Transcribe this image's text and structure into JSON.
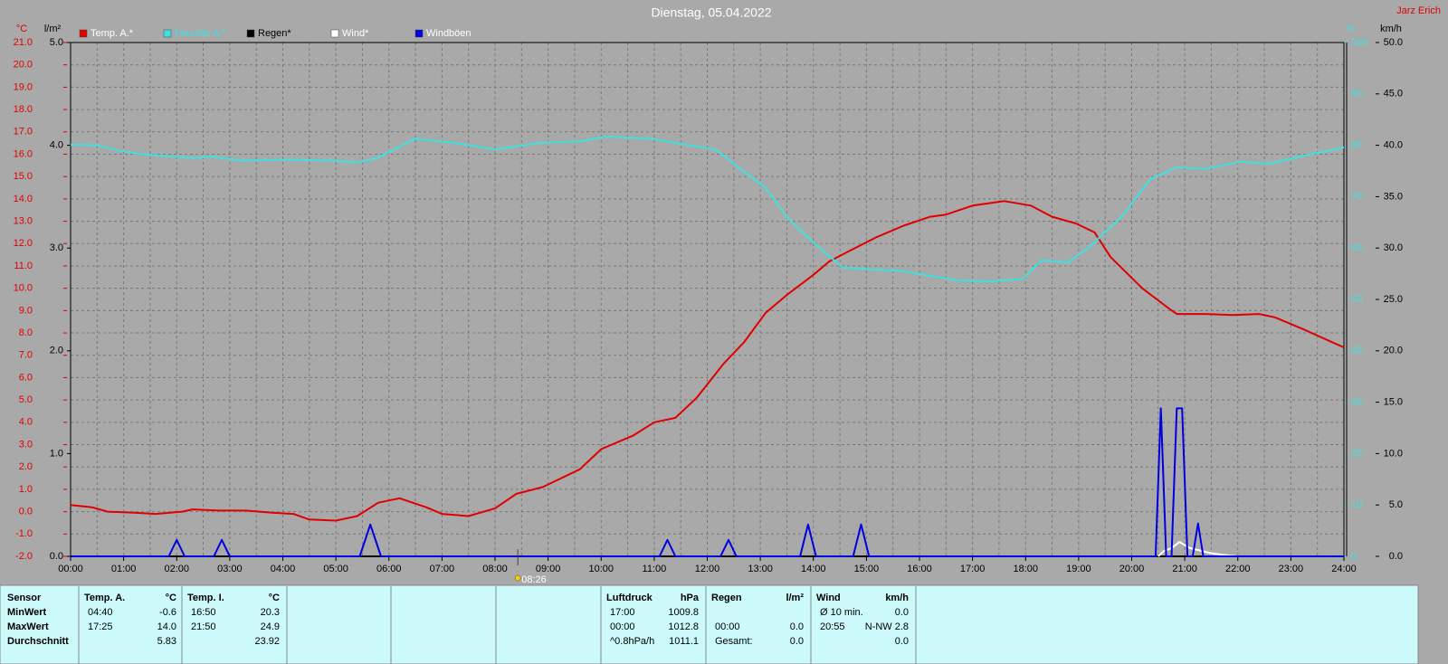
{
  "station": "Jarz Erich",
  "chart_data": {
    "type": "line",
    "title": "Dienstag, 05.04.2022",
    "xlim": [
      0,
      24
    ],
    "xticks": [
      {
        "value": 0,
        "label": "00:00"
      },
      {
        "value": 1,
        "label": "01:00"
      },
      {
        "value": 2,
        "label": "02:00"
      },
      {
        "value": 3,
        "label": "03:00"
      },
      {
        "value": 4,
        "label": "04:00"
      },
      {
        "value": 5,
        "label": "05:00"
      },
      {
        "value": 6,
        "label": "06:00"
      },
      {
        "value": 7,
        "label": "07:00"
      },
      {
        "value": 8,
        "label": "08:00"
      },
      {
        "value": 9,
        "label": "09:00"
      },
      {
        "value": 10,
        "label": "10:00"
      },
      {
        "value": 11,
        "label": "11:00"
      },
      {
        "value": 12,
        "label": "12:00"
      },
      {
        "value": 13,
        "label": "13:00"
      },
      {
        "value": 14,
        "label": "14:00"
      },
      {
        "value": 15,
        "label": "15:00"
      },
      {
        "value": 16,
        "label": "16:00"
      },
      {
        "value": 17,
        "label": "17:00"
      },
      {
        "value": 18,
        "label": "18:00"
      },
      {
        "value": 19,
        "label": "19:00"
      },
      {
        "value": 20,
        "label": "20:00"
      },
      {
        "value": 21,
        "label": "21:00"
      },
      {
        "value": 22,
        "label": "22:00"
      },
      {
        "value": 23,
        "label": "23:00"
      },
      {
        "value": 24,
        "label": "24:00"
      }
    ],
    "ylabel": "°C",
    "ylim": [
      -2,
      21
    ],
    "yticks": [
      {
        "value": -2,
        "label": "-2.0"
      },
      {
        "value": -1,
        "label": "-1.0"
      },
      {
        "value": 0,
        "label": "0.0"
      },
      {
        "value": 1,
        "label": "1.0"
      },
      {
        "value": 2,
        "label": "2.0"
      },
      {
        "value": 3,
        "label": "3.0"
      },
      {
        "value": 4,
        "label": "4.0"
      },
      {
        "value": 5,
        "label": "5.0"
      },
      {
        "value": 6,
        "label": "6.0"
      },
      {
        "value": 7,
        "label": "7.0"
      },
      {
        "value": 8,
        "label": "8.0"
      },
      {
        "value": 9,
        "label": "9.0"
      },
      {
        "value": 10,
        "label": "10.0"
      },
      {
        "value": 11,
        "label": "11.0"
      },
      {
        "value": 12,
        "label": "12.0"
      },
      {
        "value": 13,
        "label": "13.0"
      },
      {
        "value": 14,
        "label": "14.0"
      },
      {
        "value": 15,
        "label": "15.0"
      },
      {
        "value": 16,
        "label": "16.0"
      },
      {
        "value": 17,
        "label": "17.0"
      },
      {
        "value": 18,
        "label": "18.0"
      },
      {
        "value": 19,
        "label": "19.0"
      },
      {
        "value": 20,
        "label": "20.0"
      },
      {
        "value": 21,
        "label": "21.0"
      }
    ],
    "y2label": "l/m²",
    "y2lim": [
      0,
      5
    ],
    "y2ticks": [
      {
        "value": 0,
        "label": "0.0"
      },
      {
        "value": 1,
        "label": "1.0"
      },
      {
        "value": 2,
        "label": "2.0"
      },
      {
        "value": 3,
        "label": "3.0"
      },
      {
        "value": 4,
        "label": "4.0"
      },
      {
        "value": 5,
        "label": "5.0"
      }
    ],
    "y3label": "%",
    "y3lim": [
      0,
      100
    ],
    "y3ticks": [
      0,
      10,
      20,
      30,
      40,
      50,
      60,
      70,
      80,
      90,
      100
    ],
    "y4label": "km/h",
    "y4lim": [
      0,
      50
    ],
    "y4ticks": [
      {
        "value": 0,
        "label": "0.0"
      },
      {
        "value": 5,
        "label": "5.0"
      },
      {
        "value": 10,
        "label": "10.0"
      },
      {
        "value": 15,
        "label": "15.0"
      },
      {
        "value": 20,
        "label": "20.0"
      },
      {
        "value": 25,
        "label": "25.0"
      },
      {
        "value": 30,
        "label": "30.0"
      },
      {
        "value": 35,
        "label": "35.0"
      },
      {
        "value": 40,
        "label": "40.0"
      },
      {
        "value": 45,
        "label": "45.0"
      },
      {
        "value": 50,
        "label": "50.0"
      }
    ],
    "grid": true,
    "annotation": {
      "x": 8.43,
      "text": "08:26"
    },
    "series": [
      {
        "name": "Temp. A.*",
        "color": "#e00000",
        "axis": "y",
        "x": [
          0,
          0.4,
          0.7,
          1.2,
          1.6,
          2.1,
          2.3,
          2.8,
          3.3,
          3.8,
          4.2,
          4.5,
          5.0,
          5.4,
          5.8,
          6.2,
          6.7,
          7.0,
          7.5,
          8.0,
          8.4,
          8.9,
          9.6,
          10.0,
          10.6,
          11.0,
          11.4,
          11.8,
          12.3,
          12.7,
          13.1,
          13.5,
          14.0,
          14.3,
          14.7,
          15.2,
          15.7,
          16.2,
          16.5,
          17.0,
          17.6,
          18.1,
          18.5,
          18.95,
          19.3,
          19.6,
          20.2,
          20.7,
          20.85,
          21.4,
          21.9,
          22.4,
          22.7,
          23.2,
          24.0
        ],
        "values": [
          0.3,
          0.2,
          0.0,
          -0.05,
          -0.1,
          0.0,
          0.1,
          0.05,
          0.05,
          -0.05,
          -0.1,
          -0.35,
          -0.4,
          -0.2,
          0.4,
          0.6,
          0.2,
          -0.1,
          -0.2,
          0.15,
          0.8,
          1.1,
          1.9,
          2.8,
          3.4,
          4.0,
          4.2,
          5.1,
          6.6,
          7.6,
          8.9,
          9.7,
          10.6,
          11.2,
          11.7,
          12.3,
          12.8,
          13.2,
          13.3,
          13.7,
          13.9,
          13.7,
          13.2,
          12.9,
          12.5,
          11.4,
          10.0,
          9.1,
          8.85,
          8.85,
          8.8,
          8.85,
          8.7,
          8.2,
          7.35
        ]
      },
      {
        "name": "Feuchte A.*",
        "color": "#40e0e0",
        "axis": "y3",
        "x": [
          0,
          0.5,
          0.9,
          1.3,
          2.3,
          2.7,
          3.2,
          4.0,
          5.0,
          5.4,
          5.8,
          6.5,
          7.2,
          8.0,
          8.9,
          9.6,
          10.1,
          11.0,
          11.6,
          12.15,
          12.7,
          13.1,
          13.5,
          14.0,
          14.55,
          15.2,
          15.7,
          16.2,
          16.75,
          17.3,
          17.95,
          18.3,
          18.8,
          19.2,
          19.8,
          20.35,
          20.85,
          21.4,
          22.05,
          22.6,
          23.25,
          24.0
        ],
        "values": [
          80.1,
          80.0,
          79.0,
          78.3,
          77.5,
          77.8,
          77.0,
          77.2,
          77.0,
          76.6,
          77.6,
          81.3,
          80.5,
          79.2,
          80.5,
          80.8,
          81.7,
          81.2,
          80.1,
          79.2,
          74.8,
          71.7,
          66.0,
          61.1,
          56.2,
          55.8,
          55.5,
          54.6,
          53.7,
          53.5,
          54.0,
          57.6,
          57.2,
          60.2,
          66.0,
          73.4,
          75.7,
          75.4,
          76.8,
          76.4,
          78.0,
          79.6
        ]
      },
      {
        "name": "Regen*",
        "color": "#000000",
        "axis": "y2",
        "x": [
          0,
          24
        ],
        "values": [
          0,
          0
        ]
      },
      {
        "name": "Wind*",
        "color": "#ffffff",
        "axis": "y4",
        "x": [
          20.5,
          20.6,
          20.75,
          20.9,
          21.1,
          21.5,
          21.8,
          22.0
        ],
        "values": [
          0,
          0.5,
          0.8,
          1.4,
          0.8,
          0.3,
          0.1,
          0
        ]
      },
      {
        "name": "Windböen",
        "color": "#0000e0",
        "axis": "y4",
        "x": [
          0,
          1.85,
          2.0,
          2.15,
          2.7,
          2.85,
          3.0,
          5.45,
          5.65,
          5.85,
          11.1,
          11.25,
          11.4,
          12.25,
          12.4,
          12.55,
          13.75,
          13.9,
          14.05,
          14.75,
          14.9,
          15.05,
          20.45,
          20.55,
          20.65,
          20.75,
          20.85,
          20.95,
          21.05,
          21.15,
          21.25,
          21.35,
          24
        ],
        "values": [
          0,
          0,
          1.6,
          0,
          0,
          1.6,
          0,
          0,
          3.1,
          0,
          0,
          1.6,
          0,
          0,
          1.6,
          0,
          0,
          3.1,
          0,
          0,
          3.1,
          0,
          0,
          14.4,
          0,
          0,
          14.4,
          14.4,
          0,
          0,
          3.2,
          0,
          0
        ]
      }
    ]
  },
  "table": {
    "row_labels": [
      "Sensor",
      "MinWert",
      "MaxWert",
      "Durchschnitt"
    ],
    "columns": [
      {
        "title": "Temp. A.",
        "unit": "°C",
        "cells": [
          [
            "04:40",
            "-0.6"
          ],
          [
            "17:25",
            "14.0"
          ],
          [
            null,
            "5.83"
          ]
        ]
      },
      {
        "title": "Temp. I.",
        "unit": "°C",
        "cells": [
          [
            "16:50",
            "20.3"
          ],
          [
            "21:50",
            "24.9"
          ],
          [
            null,
            "23.92"
          ]
        ]
      },
      {
        "title": "Luftdruck",
        "unit": "hPa",
        "cells": [
          [
            "17:00",
            "1009.8"
          ],
          [
            "00:00",
            "1012.8"
          ],
          [
            "^0.8hPa/h",
            "1011.1"
          ]
        ]
      },
      {
        "title": "Regen",
        "unit": "l/m²",
        "cells": [
          [
            null,
            null
          ],
          [
            "00:00",
            "0.0"
          ],
          [
            "Gesamt:",
            "0.0"
          ]
        ]
      },
      {
        "title": "Wind",
        "unit": "km/h",
        "cells": [
          [
            "Ø 10 min.",
            "0.0"
          ],
          [
            "20:55",
            "N-NW 2.8"
          ],
          [
            null,
            "0.0"
          ]
        ]
      }
    ]
  }
}
